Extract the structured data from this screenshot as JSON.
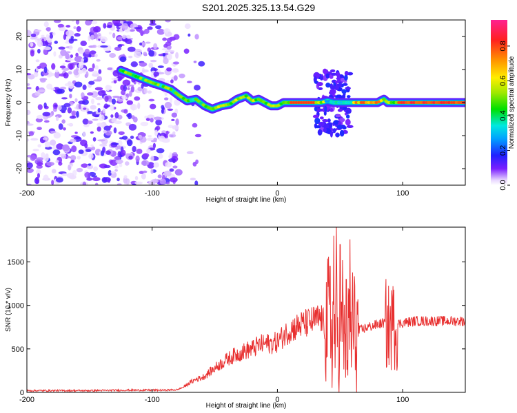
{
  "figure": {
    "title": "S201.2025.325.13.54.G29"
  },
  "chart_data": [
    {
      "type": "heatmap",
      "xlabel": "Height of straight line (km)",
      "ylabel": "Frequency (Hz)",
      "xlim": [
        -200,
        150
      ],
      "ylim": [
        -25,
        25
      ],
      "xticks": [
        -200,
        -100,
        0,
        100
      ],
      "yticks": [
        -20,
        -10,
        0,
        10,
        20
      ],
      "colorbar": {
        "label": "Normalized spectral amplitude",
        "range": [
          0,
          0.95
        ],
        "ticks": [
          0.0,
          0.2,
          0.4,
          0.6,
          0.8
        ]
      },
      "ridge": {
        "description": "dominant frequency trace (Hz) vs height (km)",
        "x": [
          -100,
          -92,
          -85,
          -78,
          -72,
          -65,
          -58,
          -52,
          -45,
          -38,
          -32,
          -25,
          -20,
          -15,
          -10,
          -5,
          0,
          5,
          10,
          20,
          30,
          35,
          40,
          45,
          50,
          55,
          60,
          70,
          80,
          85,
          88,
          92,
          100,
          120,
          150
        ],
        "y": [
          6,
          5,
          4,
          2,
          0.5,
          1,
          -1,
          -2,
          -1,
          -0.5,
          1,
          2,
          0.5,
          1,
          0,
          -1,
          -1,
          0,
          0,
          0,
          0,
          0,
          0.5,
          0,
          0,
          0,
          0,
          0,
          0,
          1,
          0,
          0,
          0,
          0,
          0
        ]
      },
      "noise_region_km": [
        -200,
        -80
      ]
    },
    {
      "type": "line",
      "xlabel": "Height of straight line (km)",
      "ylabel": "SNR (10 * v/v)",
      "xlim": [
        -200,
        150
      ],
      "ylim": [
        0,
        1900
      ],
      "xticks": [
        -200,
        -100,
        0,
        100
      ],
      "yticks": [
        0,
        500,
        1000,
        1500
      ],
      "series": [
        {
          "name": "SNR",
          "color": "#e83030",
          "envelope": {
            "x": [
              -200,
              -150,
              -120,
              -90,
              -80,
              -75,
              -70,
              -65,
              -60,
              -55,
              -50,
              -45,
              -40,
              -35,
              -30,
              -25,
              -20,
              -15,
              -10,
              -5,
              0,
              5,
              10,
              15,
              20,
              25,
              30,
              35,
              38,
              42,
              45,
              48,
              50,
              52,
              55,
              58,
              60,
              63,
              65,
              70,
              75,
              80,
              85,
              88,
              90,
              92,
              95,
              100,
              110,
              120,
              130,
              140,
              150
            ],
            "y": [
              20,
              20,
              25,
              25,
              30,
              60,
              110,
              150,
              170,
              220,
              280,
              330,
              380,
              420,
              450,
              480,
              500,
              540,
              560,
              560,
              580,
              650,
              720,
              750,
              780,
              800,
              830,
              850,
              750,
              800,
              700,
              650,
              700,
              600,
              650,
              620,
              700,
              680,
              700,
              740,
              760,
              780,
              800,
              750,
              740,
              760,
              780,
              800,
              820,
              820,
              820,
              820,
              820
            ]
          },
          "peaks": {
            "x": [
              42,
              45,
              47,
              50,
              52,
              55,
              58,
              60,
              88,
              93
            ],
            "y": [
              1450,
              1800,
              1900,
              1700,
              1520,
              1300,
              1760,
              1380,
              1000,
              1180
            ]
          }
        }
      ]
    }
  ]
}
